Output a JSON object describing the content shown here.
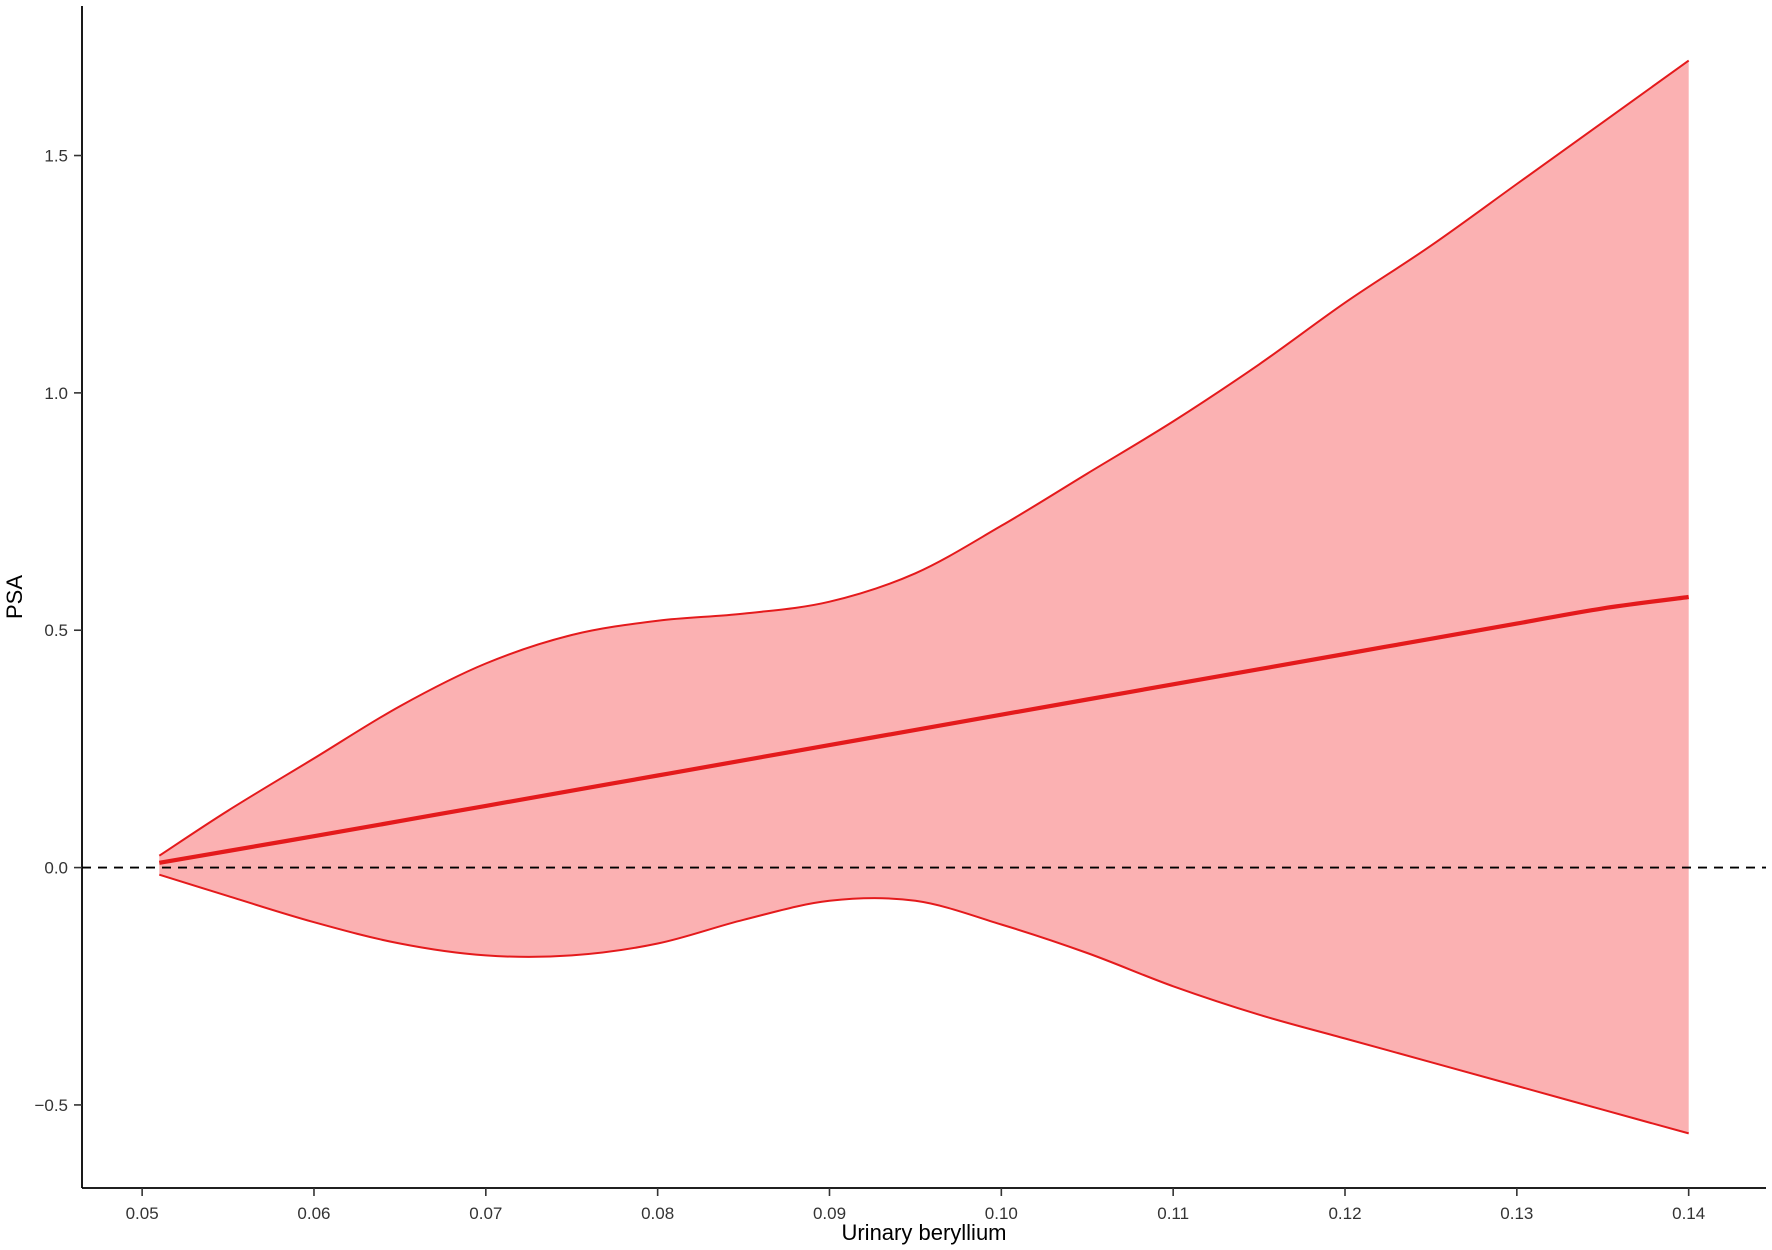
{
  "chart_data": {
    "type": "line",
    "title": "",
    "xlabel": "Urinary beryllium",
    "ylabel": "PSA",
    "xlim": [
      0.0465,
      0.1445
    ],
    "ylim": [
      -0.675,
      1.815
    ],
    "grid": false,
    "legend": "none",
    "x_ticks": [
      {
        "value": 0.05,
        "label": "0.05"
      },
      {
        "value": 0.06,
        "label": "0.06"
      },
      {
        "value": 0.07,
        "label": "0.07"
      },
      {
        "value": 0.08,
        "label": "0.08"
      },
      {
        "value": 0.09,
        "label": "0.09"
      },
      {
        "value": 0.1,
        "label": "0.10"
      },
      {
        "value": 0.11,
        "label": "0.11"
      },
      {
        "value": 0.12,
        "label": "0.12"
      },
      {
        "value": 0.13,
        "label": "0.13"
      },
      {
        "value": 0.14,
        "label": "0.14"
      }
    ],
    "y_ticks": [
      {
        "value": -0.5,
        "label": "−0.5"
      },
      {
        "value": 0.0,
        "label": "0.0"
      },
      {
        "value": 0.5,
        "label": "0.5"
      },
      {
        "value": 1.0,
        "label": "1.0"
      },
      {
        "value": 1.5,
        "label": "1.5"
      }
    ],
    "reference_line": {
      "y": 0.0,
      "style": "dashed",
      "color": "#000000"
    },
    "series": [
      {
        "kind": "estimate_with_ci",
        "line_color": "#e41a1c",
        "fill_color": "#fbb1b2",
        "x": [
          0.051,
          0.055,
          0.06,
          0.065,
          0.07,
          0.075,
          0.08,
          0.085,
          0.09,
          0.095,
          0.1,
          0.105,
          0.11,
          0.115,
          0.12,
          0.125,
          0.13,
          0.135,
          0.14
        ],
        "y": [
          0.01,
          0.035,
          0.066,
          0.098,
          0.13,
          0.162,
          0.194,
          0.226,
          0.258,
          0.29,
          0.322,
          0.354,
          0.386,
          0.418,
          0.45,
          0.482,
          0.514,
          0.546,
          0.57
        ],
        "lower": [
          -0.015,
          -0.06,
          -0.115,
          -0.16,
          -0.185,
          -0.185,
          -0.16,
          -0.11,
          -0.07,
          -0.07,
          -0.12,
          -0.18,
          -0.25,
          -0.31,
          -0.36,
          -0.41,
          -0.46,
          -0.51,
          -0.56
        ],
        "upper": [
          0.025,
          0.12,
          0.23,
          0.34,
          0.43,
          0.49,
          0.52,
          0.535,
          0.56,
          0.62,
          0.72,
          0.83,
          0.94,
          1.06,
          1.19,
          1.31,
          1.44,
          1.57,
          1.7
        ]
      }
    ]
  }
}
